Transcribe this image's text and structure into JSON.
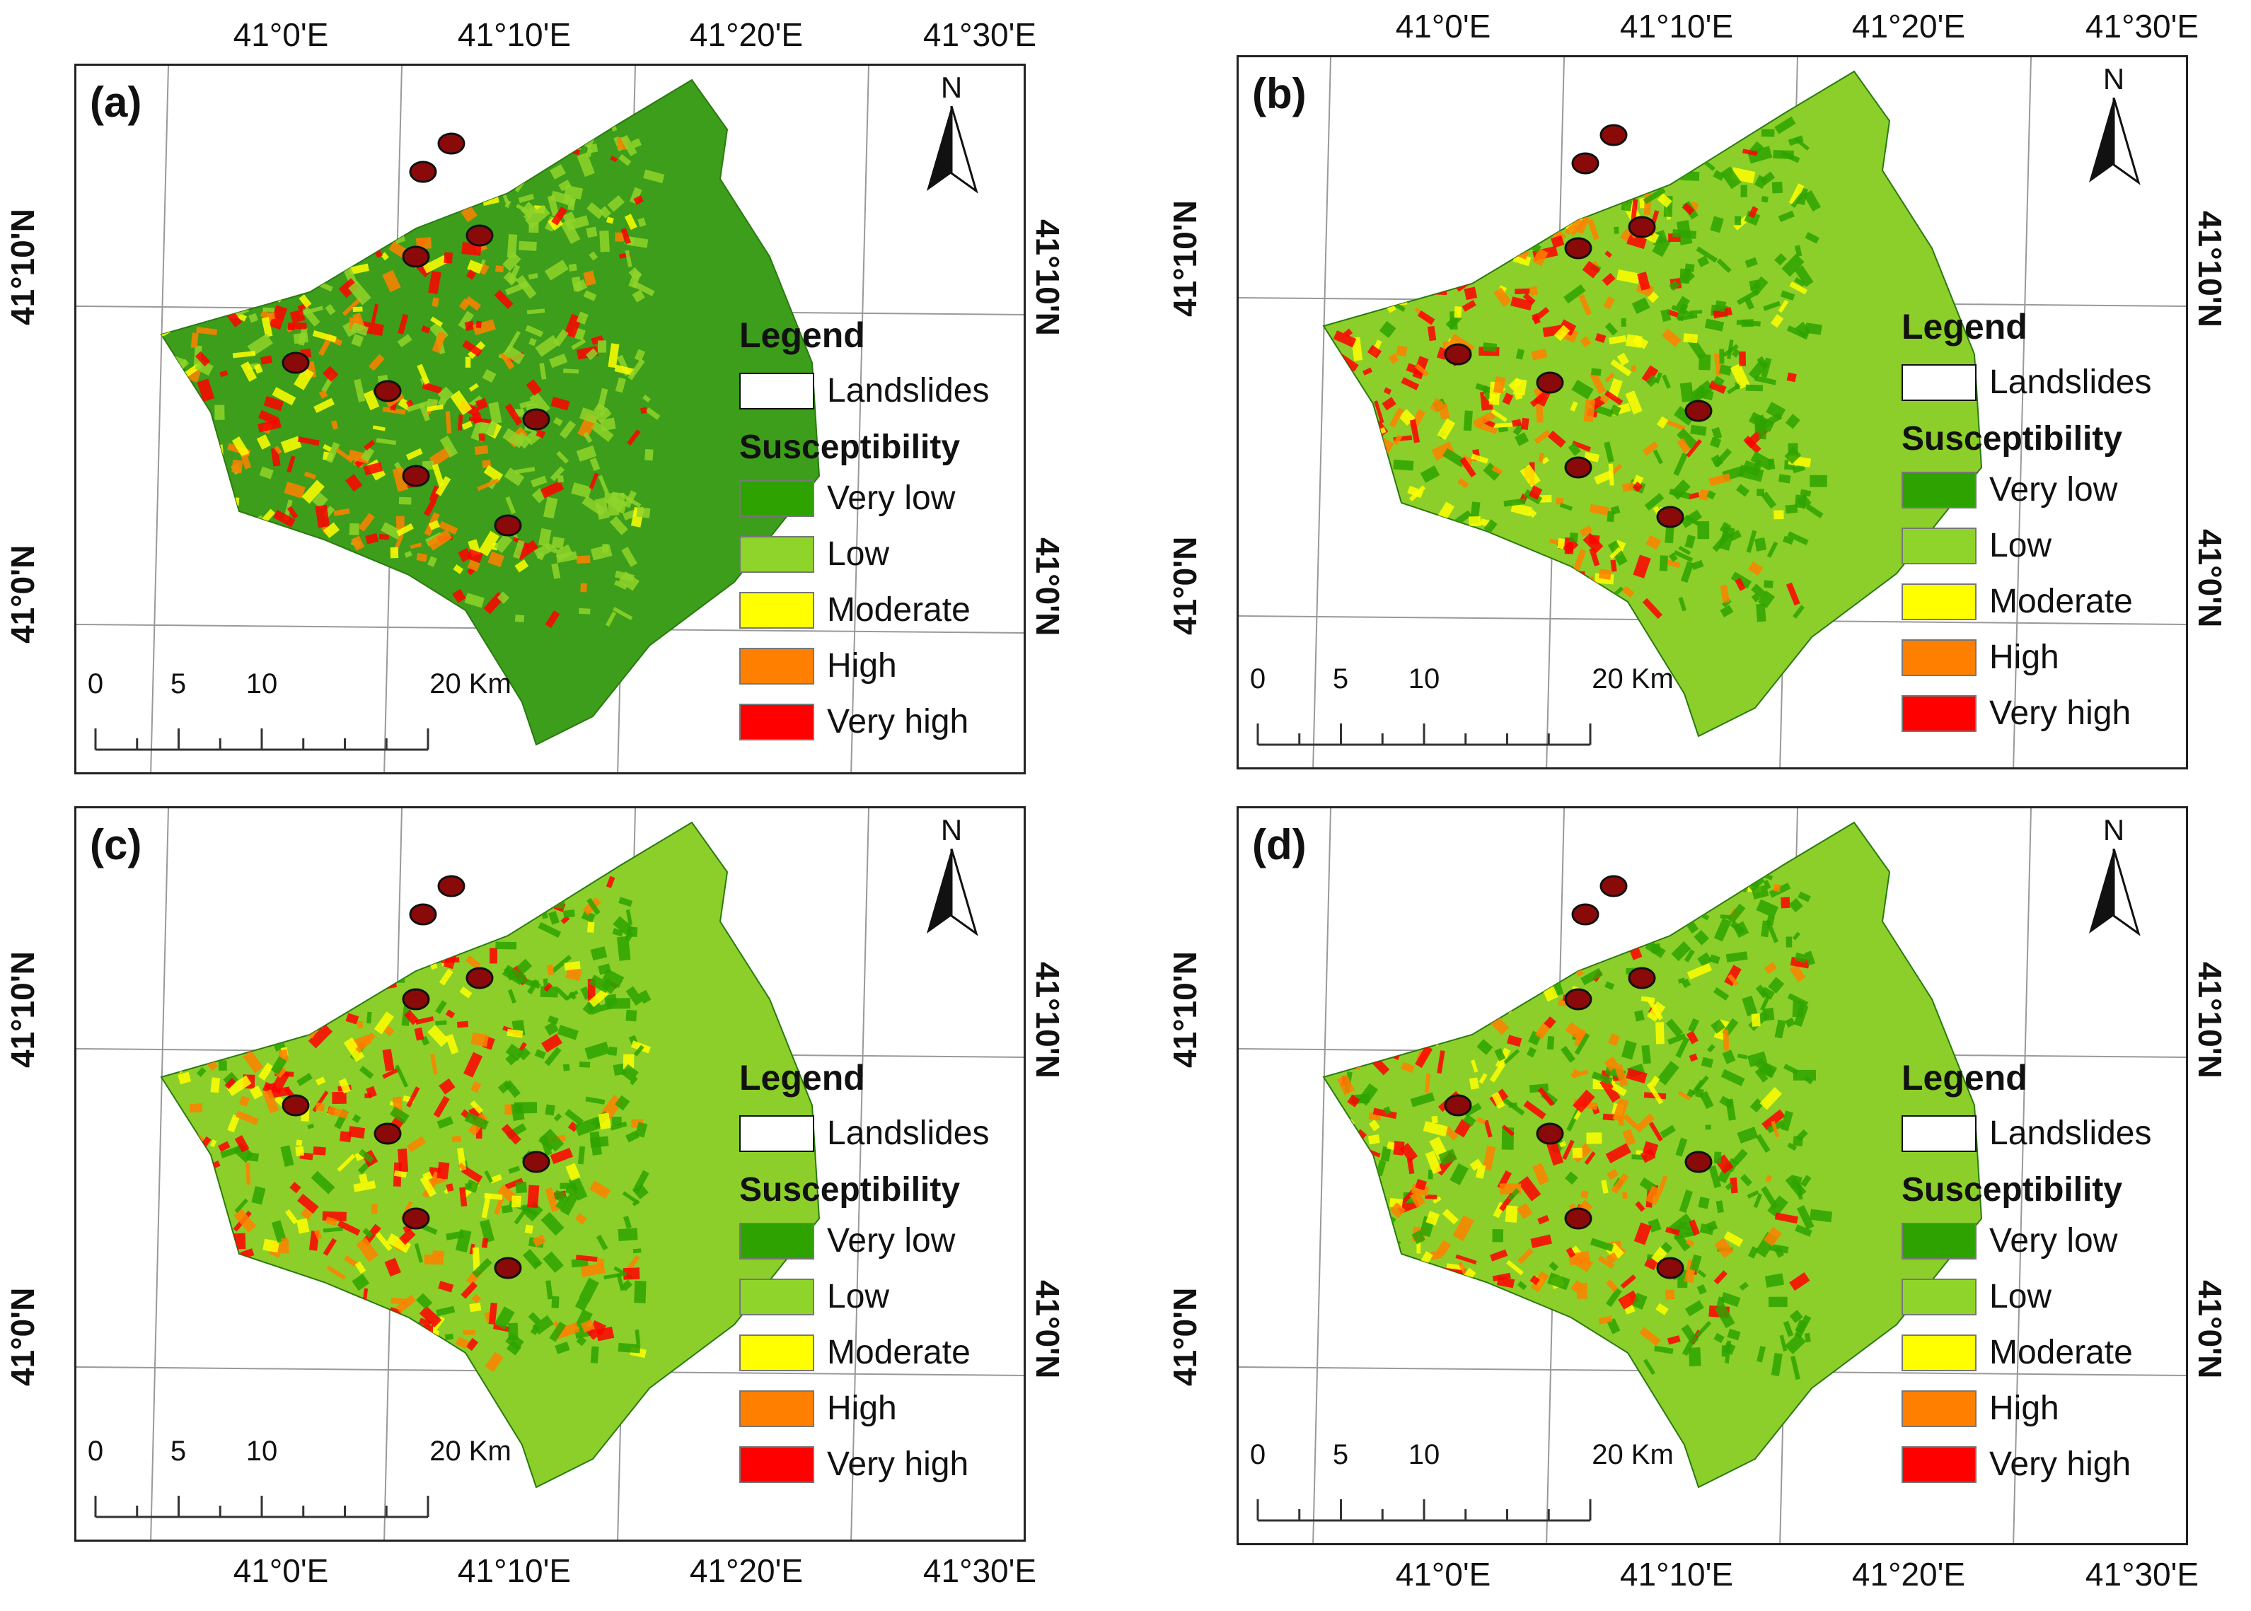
{
  "panels": [
    {
      "id": "a",
      "label": "(a)",
      "lowland": "#3c9e1a"
    },
    {
      "id": "b",
      "label": "(b)",
      "lowland": "#8ccf2a"
    },
    {
      "id": "c",
      "label": "(c)",
      "lowland": "#8ccf2a"
    },
    {
      "id": "d",
      "label": "(d)",
      "lowland": "#8ccf2a"
    }
  ],
  "coords": {
    "lon": [
      "41°0'E",
      "41°10'E",
      "41°20'E",
      "41°30'E"
    ],
    "lat": [
      "41°10'N",
      "41°0'N"
    ]
  },
  "legend": {
    "title": "Legend",
    "landslides": "Landslides",
    "subtitle": "Susceptibility",
    "classes": [
      {
        "label": "Very low",
        "color": "#2ea300"
      },
      {
        "label": "Low",
        "color": "#8fd42a"
      },
      {
        "label": "Moderate",
        "color": "#ffff00"
      },
      {
        "label": "High",
        "color": "#ff8000"
      },
      {
        "label": "Very high",
        "color": "#ff0000"
      }
    ]
  },
  "north": "N",
  "scale": {
    "ticks": [
      "0",
      "5",
      "10",
      "20 Km"
    ]
  }
}
